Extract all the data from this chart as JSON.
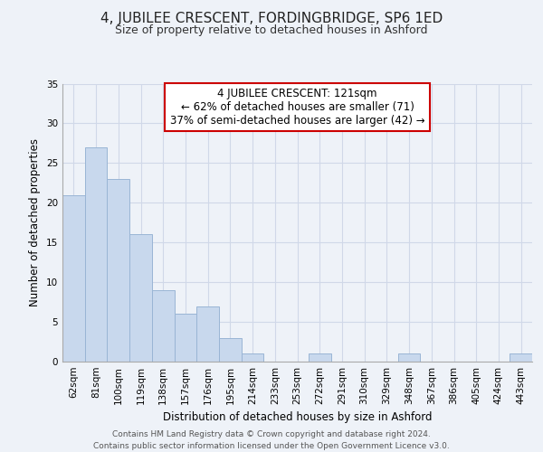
{
  "title": "4, JUBILEE CRESCENT, FORDINGBRIDGE, SP6 1ED",
  "subtitle": "Size of property relative to detached houses in Ashford",
  "xlabel": "Distribution of detached houses by size in Ashford",
  "ylabel": "Number of detached properties",
  "categories": [
    "62sqm",
    "81sqm",
    "100sqm",
    "119sqm",
    "138sqm",
    "157sqm",
    "176sqm",
    "195sqm",
    "214sqm",
    "233sqm",
    "253sqm",
    "272sqm",
    "291sqm",
    "310sqm",
    "329sqm",
    "348sqm",
    "367sqm",
    "386sqm",
    "405sqm",
    "424sqm",
    "443sqm"
  ],
  "values": [
    21,
    27,
    23,
    16,
    9,
    6,
    7,
    3,
    1,
    0,
    0,
    1,
    0,
    0,
    0,
    1,
    0,
    0,
    0,
    0,
    1
  ],
  "bar_color": "#c8d8ed",
  "bar_edge_color": "#9ab5d5",
  "ylim": [
    0,
    35
  ],
  "yticks": [
    0,
    5,
    10,
    15,
    20,
    25,
    30,
    35
  ],
  "annotation_line1": "4 JUBILEE CRESCENT: 121sqm",
  "annotation_line2": "← 62% of detached houses are smaller (71)",
  "annotation_line3": "37% of semi-detached houses are larger (42) →",
  "annotation_box_color": "#ffffff",
  "annotation_box_edge_color": "#cc0000",
  "bg_color": "#eef2f8",
  "grid_color": "#d0d8e8",
  "footer_line1": "Contains HM Land Registry data © Crown copyright and database right 2024.",
  "footer_line2": "Contains public sector information licensed under the Open Government Licence v3.0.",
  "title_fontsize": 11,
  "subtitle_fontsize": 9,
  "axis_label_fontsize": 8.5,
  "tick_fontsize": 7.5,
  "annotation_fontsize": 8.5,
  "footer_fontsize": 6.5
}
